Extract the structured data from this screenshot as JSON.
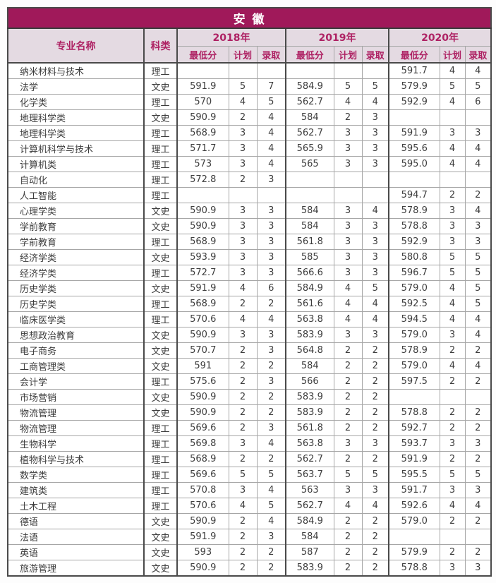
{
  "title": "安 徽",
  "colors": {
    "title_bg": "#A0195A",
    "header_bg": "#E4DAE2",
    "header_text": "#AE2163",
    "body_text": "#3D3D3D"
  },
  "table": {
    "col_headers": {
      "major": "专业名称",
      "category": "科类",
      "years": [
        "2018年",
        "2019年",
        "2020年"
      ],
      "sub": [
        "最低分",
        "计划",
        "录取"
      ]
    },
    "rows": [
      [
        "纳米材料与技术",
        "理工",
        "",
        "",
        "",
        "",
        "",
        "",
        "591.7",
        "4",
        "4"
      ],
      [
        "法学",
        "文史",
        "591.9",
        "5",
        "7",
        "584.9",
        "5",
        "5",
        "579.9",
        "5",
        "5"
      ],
      [
        "化学类",
        "理工",
        "570",
        "4",
        "5",
        "562.7",
        "4",
        "4",
        "592.9",
        "4",
        "6"
      ],
      [
        "地理科学类",
        "文史",
        "590.9",
        "2",
        "4",
        "584",
        "2",
        "3",
        "",
        "",
        ""
      ],
      [
        "地理科学类",
        "理工",
        "568.9",
        "3",
        "4",
        "562.7",
        "3",
        "3",
        "591.9",
        "3",
        "3"
      ],
      [
        "计算机科学与技术",
        "理工",
        "571.7",
        "3",
        "4",
        "565.9",
        "3",
        "3",
        "595.6",
        "4",
        "4"
      ],
      [
        "计算机类",
        "理工",
        "573",
        "3",
        "4",
        "565",
        "3",
        "3",
        "595.0",
        "4",
        "4"
      ],
      [
        "自动化",
        "理工",
        "572.8",
        "2",
        "3",
        "",
        "",
        "",
        "",
        "",
        ""
      ],
      [
        "人工智能",
        "理工",
        "",
        "",
        "",
        "",
        "",
        "",
        "594.7",
        "2",
        "2"
      ],
      [
        "心理学类",
        "文史",
        "590.9",
        "3",
        "3",
        "584",
        "3",
        "4",
        "578.9",
        "3",
        "4"
      ],
      [
        "学前教育",
        "文史",
        "590.9",
        "3",
        "3",
        "584",
        "3",
        "3",
        "578.8",
        "3",
        "3"
      ],
      [
        "学前教育",
        "理工",
        "568.9",
        "3",
        "3",
        "561.8",
        "3",
        "3",
        "592.9",
        "3",
        "3"
      ],
      [
        "经济学类",
        "文史",
        "593.9",
        "3",
        "3",
        "585",
        "3",
        "3",
        "580.8",
        "5",
        "5"
      ],
      [
        "经济学类",
        "理工",
        "572.7",
        "3",
        "3",
        "566.6",
        "3",
        "3",
        "596.7",
        "5",
        "5"
      ],
      [
        "历史学类",
        "文史",
        "591.9",
        "4",
        "6",
        "584.9",
        "4",
        "5",
        "579.0",
        "4",
        "5"
      ],
      [
        "历史学类",
        "理工",
        "568.9",
        "2",
        "2",
        "561.6",
        "4",
        "4",
        "592.5",
        "4",
        "5"
      ],
      [
        "临床医学类",
        "理工",
        "570.6",
        "4",
        "4",
        "563.8",
        "4",
        "4",
        "594.5",
        "4",
        "4"
      ],
      [
        "思想政治教育",
        "文史",
        "590.9",
        "3",
        "3",
        "583.9",
        "3",
        "3",
        "579.0",
        "3",
        "4"
      ],
      [
        "电子商务",
        "文史",
        "570.7",
        "2",
        "3",
        "564.8",
        "2",
        "2",
        "578.9",
        "2",
        "2"
      ],
      [
        "工商管理类",
        "文史",
        "591",
        "2",
        "2",
        "584",
        "2",
        "2",
        "579.0",
        "4",
        "4"
      ],
      [
        "会计学",
        "理工",
        "575.6",
        "2",
        "3",
        "566",
        "2",
        "2",
        "597.5",
        "2",
        "2"
      ],
      [
        "市场营销",
        "文史",
        "590.9",
        "2",
        "2",
        "583.9",
        "2",
        "2",
        "",
        "",
        ""
      ],
      [
        "物流管理",
        "文史",
        "590.9",
        "2",
        "2",
        "583.9",
        "2",
        "2",
        "578.8",
        "2",
        "2"
      ],
      [
        "物流管理",
        "理工",
        "569.6",
        "2",
        "3",
        "561.8",
        "2",
        "2",
        "592.7",
        "2",
        "2"
      ],
      [
        "生物科学",
        "理工",
        "569.8",
        "3",
        "4",
        "563.8",
        "3",
        "3",
        "593.7",
        "3",
        "3"
      ],
      [
        "植物科学与技术",
        "理工",
        "568.9",
        "2",
        "2",
        "562.7",
        "2",
        "2",
        "591.9",
        "2",
        "2"
      ],
      [
        "数学类",
        "理工",
        "569.6",
        "5",
        "5",
        "563.7",
        "5",
        "5",
        "595.5",
        "5",
        "5"
      ],
      [
        "建筑类",
        "理工",
        "570.8",
        "3",
        "4",
        "563",
        "3",
        "3",
        "591.7",
        "3",
        "3"
      ],
      [
        "土木工程",
        "理工",
        "570.6",
        "4",
        "5",
        "562.7",
        "4",
        "4",
        "592.6",
        "4",
        "4"
      ],
      [
        "德语",
        "文史",
        "590.9",
        "2",
        "4",
        "584.9",
        "2",
        "2",
        "579.0",
        "2",
        "2"
      ],
      [
        "法语",
        "文史",
        "591.9",
        "2",
        "3",
        "584",
        "2",
        "2",
        "",
        "",
        ""
      ],
      [
        "英语",
        "文史",
        "593",
        "2",
        "2",
        "587",
        "2",
        "2",
        "579.9",
        "2",
        "2"
      ],
      [
        "旅游管理",
        "文史",
        "590.9",
        "2",
        "2",
        "583.9",
        "2",
        "2",
        "578.8",
        "3",
        "3"
      ]
    ]
  }
}
